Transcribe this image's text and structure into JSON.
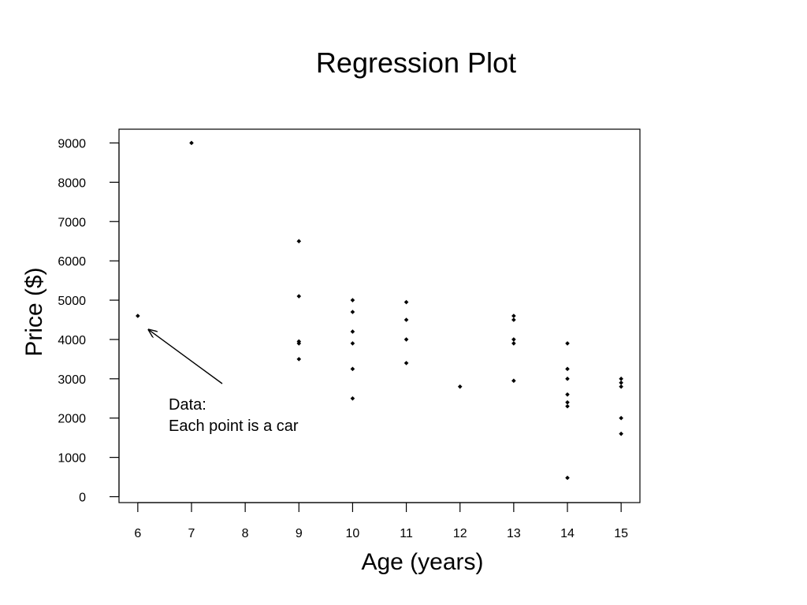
{
  "chart_data": {
    "type": "scatter",
    "title": "Regression Plot",
    "xlabel": "Age (years)",
    "ylabel": "Price ($)",
    "xlim": [
      5.65,
      15.35
    ],
    "ylim": [
      -150,
      9350
    ],
    "x_ticks": [
      6,
      7,
      8,
      9,
      10,
      11,
      12,
      13,
      14,
      15
    ],
    "y_ticks": [
      0,
      1000,
      2000,
      3000,
      4000,
      5000,
      6000,
      7000,
      8000,
      9000
    ],
    "grid": false,
    "legend": "none",
    "marker_color": "#000000",
    "annotation": {
      "lines": [
        "Data:",
        "Each point is a car"
      ],
      "arrow_to": {
        "x": 6.2,
        "y": 4250
      }
    },
    "series": [
      {
        "points": [
          {
            "x": 6,
            "y": 4600
          },
          {
            "x": 7,
            "y": 9000
          },
          {
            "x": 9,
            "y": 6500
          },
          {
            "x": 9,
            "y": 5100
          },
          {
            "x": 9,
            "y": 3950
          },
          {
            "x": 9,
            "y": 3900
          },
          {
            "x": 9,
            "y": 3500
          },
          {
            "x": 10,
            "y": 5000
          },
          {
            "x": 10,
            "y": 4700
          },
          {
            "x": 10,
            "y": 4200
          },
          {
            "x": 10,
            "y": 3900
          },
          {
            "x": 10,
            "y": 3250
          },
          {
            "x": 10,
            "y": 2500
          },
          {
            "x": 11,
            "y": 4950
          },
          {
            "x": 11,
            "y": 4500
          },
          {
            "x": 11,
            "y": 4000
          },
          {
            "x": 11,
            "y": 3400
          },
          {
            "x": 12,
            "y": 2800
          },
          {
            "x": 13,
            "y": 4600
          },
          {
            "x": 13,
            "y": 4500
          },
          {
            "x": 13,
            "y": 4000
          },
          {
            "x": 13,
            "y": 3900
          },
          {
            "x": 13,
            "y": 2950
          },
          {
            "x": 14,
            "y": 3900
          },
          {
            "x": 14,
            "y": 3250
          },
          {
            "x": 14,
            "y": 3000
          },
          {
            "x": 14,
            "y": 2600
          },
          {
            "x": 14,
            "y": 2400
          },
          {
            "x": 14,
            "y": 2300
          },
          {
            "x": 14,
            "y": 480
          },
          {
            "x": 15,
            "y": 3000
          },
          {
            "x": 15,
            "y": 2900
          },
          {
            "x": 15,
            "y": 2800
          },
          {
            "x": 15,
            "y": 2000
          },
          {
            "x": 15,
            "y": 1600
          }
        ]
      }
    ]
  }
}
